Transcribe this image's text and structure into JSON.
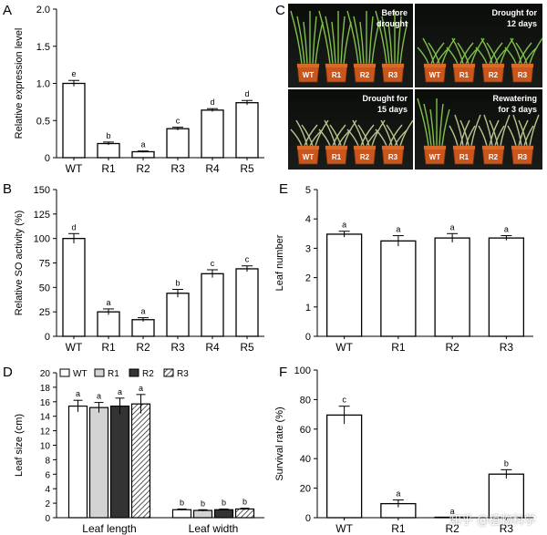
{
  "panel_letters": {
    "A": "A",
    "B": "B",
    "C": "C",
    "D": "D",
    "E": "E",
    "F": "F"
  },
  "watermark": "知乎 @植物科学",
  "photos": [
    {
      "label1": "Before",
      "label2": "drought",
      "pots": [
        "WT",
        "R1",
        "R2",
        "R3"
      ]
    },
    {
      "label1": "Drought for",
      "label2": "12  days",
      "pots": [
        "WT",
        "R1",
        "R2",
        "R3"
      ]
    },
    {
      "label1": "Drought for",
      "label2": "15 days",
      "pots": [
        "WT",
        "R1",
        "R2",
        "R3"
      ]
    },
    {
      "label1": "Rewatering",
      "label2": "for 3 days",
      "pots": [
        "WT",
        "R1",
        "R2",
        "R3"
      ]
    }
  ],
  "chart_data": [
    {
      "id": "A",
      "type": "bar",
      "categories": [
        "WT",
        "R1",
        "R2",
        "R3",
        "R4",
        "R5"
      ],
      "values": [
        1.0,
        0.19,
        0.08,
        0.39,
        0.64,
        0.74
      ],
      "errors": [
        0.04,
        0.02,
        0.01,
        0.02,
        0.02,
        0.03
      ],
      "letters": [
        "e",
        "b",
        "a",
        "c",
        "d",
        "d"
      ],
      "ylabel": "Relative expression level",
      "ylim": [
        0,
        2.0
      ],
      "yticks": [
        "0",
        "0.5",
        "1.0",
        "1.5",
        "2.0"
      ],
      "ytick_values": [
        0,
        0.5,
        1.0,
        1.5,
        2.0
      ]
    },
    {
      "id": "B",
      "type": "bar",
      "categories": [
        "WT",
        "R1",
        "R2",
        "R3",
        "R4",
        "R5"
      ],
      "values": [
        100,
        25,
        17,
        44,
        64,
        69
      ],
      "errors": [
        5,
        3,
        2,
        4,
        4,
        3
      ],
      "letters": [
        "d",
        "a",
        "a",
        "b",
        "c",
        "c"
      ],
      "ylabel": "Relative SO activity (%)",
      "ylim": [
        0,
        150
      ],
      "yticks": [
        "0",
        "25",
        "50",
        "75",
        "100",
        "125",
        "150"
      ],
      "ytick_values": [
        0,
        25,
        50,
        75,
        100,
        125,
        150
      ]
    },
    {
      "id": "D",
      "type": "bar",
      "groups": [
        "Leaf length",
        "Leaf width"
      ],
      "legend": [
        "WT",
        "R1",
        "R2",
        "R3"
      ],
      "series": [
        {
          "name": "WT",
          "values": [
            15.4,
            1.1
          ],
          "errors": [
            0.8,
            0.1
          ],
          "letters": [
            "a",
            "b"
          ],
          "color": "#ffffff"
        },
        {
          "name": "R1",
          "values": [
            15.2,
            1.0
          ],
          "errors": [
            0.7,
            0.1
          ],
          "letters": [
            "a",
            "b"
          ],
          "color": "#d3d3d3"
        },
        {
          "name": "R2",
          "values": [
            15.4,
            1.1
          ],
          "errors": [
            1.1,
            0.1
          ],
          "letters": [
            "a",
            "b"
          ],
          "color": "#333333"
        },
        {
          "name": "R3",
          "values": [
            15.7,
            1.2
          ],
          "errors": [
            1.3,
            0.1
          ],
          "letters": [
            "a",
            "b"
          ],
          "color": "hatch"
        }
      ],
      "ylabel": "Leaf size (cm)",
      "ylim": [
        0,
        20
      ],
      "yticks": [
        "0",
        "2",
        "4",
        "6",
        "8",
        "10",
        "12",
        "14",
        "16",
        "18",
        "20"
      ],
      "ytick_values": [
        0,
        2,
        4,
        6,
        8,
        10,
        12,
        14,
        16,
        18,
        20
      ]
    },
    {
      "id": "E",
      "type": "bar",
      "categories": [
        "WT",
        "R1",
        "R2",
        "R3"
      ],
      "values": [
        3.48,
        3.25,
        3.35,
        3.35
      ],
      "errors": [
        0.1,
        0.18,
        0.15,
        0.08
      ],
      "letters": [
        "a",
        "a",
        "a",
        "a"
      ],
      "ylabel": "Leaf number",
      "ylim": [
        0,
        5
      ],
      "yticks": [
        "0",
        "1",
        "2",
        "3",
        "4",
        "5"
      ],
      "ytick_values": [
        0,
        1,
        2,
        3,
        4,
        5
      ]
    },
    {
      "id": "F",
      "type": "bar",
      "categories": [
        "WT",
        "R1",
        "R2",
        "R3"
      ],
      "values": [
        69.5,
        9.5,
        0,
        29.5
      ],
      "errors": [
        6,
        2.5,
        0,
        3
      ],
      "letters": [
        "c",
        "a",
        "a",
        "b"
      ],
      "ylabel": "Survival rate (%)",
      "ylim": [
        0,
        100
      ],
      "yticks": [
        "0",
        "20",
        "40",
        "60",
        "80",
        "100"
      ],
      "ytick_values": [
        0,
        20,
        40,
        60,
        80,
        100
      ]
    }
  ]
}
